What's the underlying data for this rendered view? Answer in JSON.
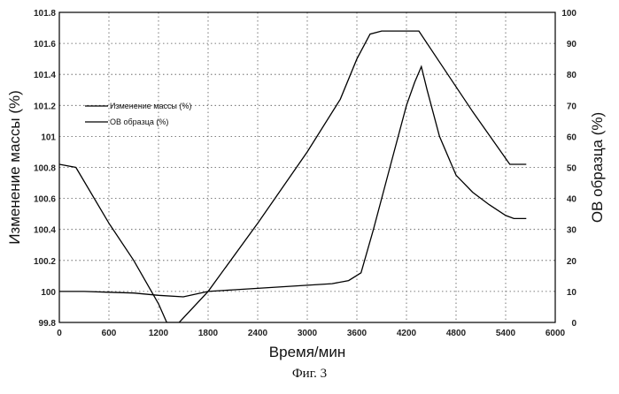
{
  "chart_data": {
    "type": "line",
    "xlabel": "Время/мин",
    "ylabel_left": "Изменение массы (%)",
    "ylabel_right": "ОВ образца (%)",
    "xlim": [
      0,
      6000
    ],
    "ylim_left": [
      99.8,
      101.8
    ],
    "ylim_right": [
      0,
      100
    ],
    "x_ticks": [
      "0",
      "600",
      "1200",
      "1800",
      "2400",
      "3000",
      "3600",
      "4200",
      "4800",
      "5400",
      "6000"
    ],
    "y_left_ticks": [
      "99.8",
      "100",
      "100.2",
      "100.4",
      "100.6",
      "100.8",
      "101",
      "101.2",
      "101.4",
      "101.6",
      "101.8"
    ],
    "y_right_ticks": [
      "0",
      "10",
      "20",
      "30",
      "40",
      "50",
      "60",
      "70",
      "80",
      "90",
      "100"
    ],
    "grid": "dotted",
    "legend_position": "upper-left",
    "series": [
      {
        "name": "Изменение массы (%)",
        "axis": "left",
        "points": [
          [
            0,
            100.0
          ],
          [
            300,
            100.0
          ],
          [
            600,
            99.995
          ],
          [
            900,
            99.99
          ],
          [
            1200,
            99.975
          ],
          [
            1500,
            99.965
          ],
          [
            1800,
            100.0
          ],
          [
            2100,
            100.01
          ],
          [
            2400,
            100.02
          ],
          [
            2700,
            100.03
          ],
          [
            3000,
            100.04
          ],
          [
            3300,
            100.05
          ],
          [
            3500,
            100.07
          ],
          [
            3650,
            100.12
          ],
          [
            3800,
            100.4
          ],
          [
            4000,
            100.8
          ],
          [
            4200,
            101.2
          ],
          [
            4300,
            101.35
          ],
          [
            4380,
            101.45
          ],
          [
            4450,
            101.3
          ],
          [
            4600,
            101.0
          ],
          [
            4800,
            100.75
          ],
          [
            5000,
            100.64
          ],
          [
            5200,
            100.56
          ],
          [
            5400,
            100.49
          ],
          [
            5500,
            100.47
          ],
          [
            5650,
            100.47
          ]
        ]
      },
      {
        "name": "ОВ образца (%)",
        "axis": "right",
        "points": [
          [
            0,
            51
          ],
          [
            200,
            50
          ],
          [
            600,
            32
          ],
          [
            900,
            20
          ],
          [
            1200,
            6
          ],
          [
            1300,
            0
          ],
          [
            1450,
            0
          ],
          [
            1800,
            10
          ],
          [
            2400,
            32
          ],
          [
            3000,
            55
          ],
          [
            3400,
            72
          ],
          [
            3600,
            85
          ],
          [
            3760,
            93
          ],
          [
            3900,
            94
          ],
          [
            4200,
            94
          ],
          [
            4350,
            94
          ],
          [
            4600,
            84
          ],
          [
            5000,
            68
          ],
          [
            5450,
            51
          ],
          [
            5650,
            51
          ]
        ]
      }
    ]
  },
  "caption": "Фиг. 3"
}
